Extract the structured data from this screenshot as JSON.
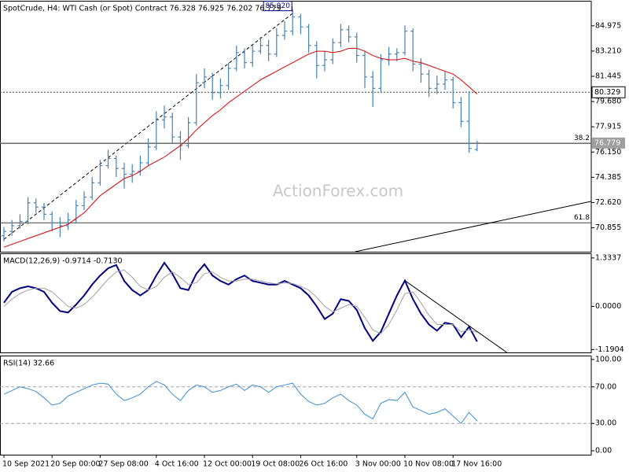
{
  "chart_data": [
    {
      "type": "ohlc",
      "title": "SpotCrude, H4:  WTI Cash (or Spot) Contract  76.328 76.925 76.202 76.779",
      "watermark": "ActionForex.com",
      "color": "#4682b4",
      "categories": [
        "10 Sep 2021",
        null,
        null,
        null,
        null,
        null,
        "20 Sep 00:00",
        null,
        null,
        null,
        null,
        null,
        "27 Sep 08:00",
        null,
        null,
        null,
        null,
        null,
        null,
        "4 Oct 16:00",
        null,
        null,
        null,
        null,
        null,
        "12 Oct 00:00",
        null,
        null,
        null,
        null,
        null,
        "19 Oct 08:00",
        null,
        null,
        null,
        null,
        null,
        "26 Oct 16:00",
        null,
        null,
        null,
        null,
        null,
        null,
        "3 Nov 00:00",
        null,
        null,
        null,
        null,
        null,
        "10 Nov 08:00",
        null,
        null,
        null,
        null,
        null,
        "17 Nov 16:00",
        null,
        null,
        null
      ],
      "open": [
        70.3,
        70.6,
        71.0,
        71.3,
        72.6,
        72.3,
        71.8,
        71.2,
        71.0,
        71.4,
        72.4,
        73.0,
        74.0,
        75.2,
        75.7,
        75.0,
        74.6,
        74.8,
        75.4,
        76.5,
        78.4,
        78.6,
        77.2,
        76.6,
        78.2,
        81.0,
        81.4,
        80.3,
        80.8,
        82.0,
        83.1,
        82.4,
        83.2,
        83.6,
        83.0,
        84.3,
        84.6,
        85.6,
        84.9,
        83.6,
        82.2,
        82.6,
        83.8,
        84.7,
        84.2,
        82.9,
        81.4,
        80.6,
        82.6,
        83.0,
        83.1,
        84.6,
        82.3,
        81.6,
        80.6,
        80.9,
        81.2,
        79.6,
        78.3,
        76.328
      ],
      "high": [
        70.9,
        71.4,
        71.8,
        73.0,
        72.9,
        72.6,
        72.0,
        71.6,
        71.9,
        72.8,
        73.4,
        74.4,
        75.6,
        76.3,
        75.9,
        75.4,
        75.3,
        75.9,
        77.1,
        79.0,
        79.4,
        78.9,
        77.6,
        78.6,
        81.6,
        82.0,
        81.7,
        81.3,
        82.4,
        83.6,
        83.4,
        83.6,
        84.2,
        84.0,
        84.8,
        85.3,
        85.92,
        85.8,
        85.1,
        83.9,
        83.2,
        84.1,
        85.1,
        85.0,
        84.5,
        83.2,
        81.8,
        83.0,
        83.5,
        83.4,
        85.0,
        84.8,
        82.7,
        81.9,
        81.5,
        81.8,
        81.4,
        80.0,
        80.4,
        76.925
      ],
      "low": [
        69.9,
        70.3,
        70.8,
        71.1,
        71.9,
        71.4,
        70.6,
        70.2,
        70.7,
        71.2,
        72.1,
        72.8,
        73.8,
        75.0,
        74.4,
        73.6,
        74.0,
        74.5,
        75.2,
        76.3,
        77.8,
        76.8,
        75.6,
        76.4,
        78.0,
        80.6,
        79.8,
        79.9,
        80.5,
        81.8,
        82.0,
        82.1,
        83.0,
        82.5,
        82.8,
        84.0,
        84.3,
        84.4,
        83.1,
        81.3,
        81.8,
        82.3,
        83.5,
        83.8,
        82.4,
        80.6,
        79.3,
        80.3,
        82.2,
        82.5,
        82.9,
        81.8,
        81.0,
        80.0,
        80.2,
        80.5,
        79.2,
        77.9,
        76.1,
        76.202
      ],
      "close": [
        70.6,
        71.0,
        71.3,
        72.6,
        72.3,
        71.8,
        71.2,
        71.0,
        71.4,
        72.4,
        73.0,
        74.0,
        75.2,
        75.7,
        75.0,
        74.6,
        74.8,
        75.4,
        76.5,
        78.4,
        78.6,
        77.2,
        76.6,
        78.2,
        81.0,
        81.4,
        80.3,
        80.8,
        82.0,
        83.1,
        82.4,
        83.2,
        83.6,
        83.0,
        84.3,
        84.6,
        85.6,
        84.9,
        83.6,
        82.2,
        82.6,
        83.8,
        84.7,
        84.2,
        82.9,
        81.4,
        80.6,
        82.6,
        83.0,
        83.1,
        84.6,
        82.3,
        81.6,
        80.6,
        80.9,
        81.2,
        79.6,
        78.3,
        76.4,
        76.779
      ],
      "ma": {
        "color": "#e00000",
        "values": [
          69.5,
          69.7,
          69.9,
          70.1,
          70.3,
          70.5,
          70.7,
          70.9,
          71.1,
          71.5,
          71.9,
          72.5,
          73.1,
          73.5,
          73.9,
          74.3,
          74.5,
          74.8,
          75.2,
          75.5,
          75.8,
          76.2,
          76.6,
          77.1,
          77.7,
          78.2,
          78.7,
          79.1,
          79.6,
          80.0,
          80.4,
          80.8,
          81.2,
          81.5,
          81.8,
          82.1,
          82.4,
          82.7,
          83.0,
          83.2,
          83.2,
          83.1,
          83.2,
          83.4,
          83.4,
          83.2,
          82.9,
          82.7,
          82.6,
          82.6,
          82.7,
          82.5,
          82.4,
          82.2,
          82.0,
          81.8,
          81.6,
          81.2,
          80.7,
          80.2
        ]
      },
      "ylim": [
        69.18,
        86.67
      ],
      "yticks": [
        84.975,
        {
          "value": 83.21,
          "label": "83.210"
        },
        81.445,
        {
          "value": 79.68,
          "label": "79.680"
        },
        77.915,
        {
          "value": 76.15,
          "label": "76.150"
        },
        74.385,
        {
          "value": 72.62,
          "label": "72.620"
        },
        70.855
      ],
      "levels": [
        {
          "value": 80.329,
          "style": "dotted"
        },
        {
          "value": 76.75,
          "label": "38.2"
        },
        {
          "value": 71.2,
          "label": "61.8"
        }
      ],
      "trendlines": [
        {
          "points": [
            [
              0,
              70.05
            ],
            [
              36,
              85.85
            ]
          ],
          "style": "dashed"
        },
        {
          "points": [
            [
              43.8,
              69.18
            ],
            [
              73.2,
              72.7
            ]
          ],
          "style": "solid"
        }
      ],
      "annotations": [
        {
          "index": 36,
          "value": 85.92,
          "label": "85.920"
        }
      ]
    },
    {
      "type": "macd",
      "title": "MACD(12,26,9) -0.9714 -0.7130",
      "series": [
        {
          "color": "#000080",
          "values": [
            0.1,
            0.4,
            0.5,
            0.55,
            0.5,
            0.4,
            0.1,
            -0.13,
            -0.17,
            0.05,
            0.3,
            0.6,
            0.85,
            1.05,
            1.14,
            0.7,
            0.45,
            0.3,
            0.45,
            0.85,
            1.2,
            0.9,
            0.5,
            0.45,
            0.9,
            1.16,
            0.85,
            0.7,
            0.6,
            0.75,
            0.85,
            0.7,
            0.65,
            0.6,
            0.6,
            0.7,
            0.6,
            0.5,
            0.3,
            0.0,
            -0.35,
            -0.2,
            0.2,
            0.15,
            -0.1,
            -0.6,
            -0.95,
            -0.7,
            -0.2,
            0.3,
            0.71,
            0.2,
            -0.2,
            -0.5,
            -0.67,
            -0.45,
            -0.5,
            -0.85,
            -0.56,
            -0.9714
          ]
        },
        {
          "color": "#a0a0a0",
          "values": [
            0.0,
            0.2,
            0.35,
            0.45,
            0.5,
            0.5,
            0.4,
            0.2,
            0.0,
            -0.05,
            0.05,
            0.25,
            0.5,
            0.75,
            0.95,
            1.0,
            0.8,
            0.55,
            0.45,
            0.55,
            0.8,
            0.95,
            0.8,
            0.6,
            0.65,
            0.9,
            0.95,
            0.8,
            0.7,
            0.7,
            0.75,
            0.75,
            0.7,
            0.65,
            0.62,
            0.65,
            0.63,
            0.55,
            0.45,
            0.25,
            0.0,
            -0.15,
            -0.05,
            0.05,
            0.0,
            -0.3,
            -0.65,
            -0.75,
            -0.5,
            -0.1,
            0.35,
            0.4,
            0.1,
            -0.25,
            -0.5,
            -0.5,
            -0.5,
            -0.7,
            -0.65,
            -0.713
          ]
        }
      ],
      "ylim": [
        -1.269,
        1.44
      ],
      "yticks": [
        1.3337,
        {
          "value": 0,
          "label": "0.0000"
        },
        -1.1904
      ],
      "trendlines": [
        {
          "points": [
            [
              50,
              0.71
            ],
            [
              62.7,
              -1.269
            ]
          ],
          "style": "solid"
        }
      ]
    },
    {
      "type": "rsi",
      "title": "RSI(14) 32.66",
      "color": "#3a8fd0",
      "values": [
        62,
        66,
        70,
        68,
        65,
        58,
        50,
        52,
        60,
        64,
        68,
        72,
        74,
        73,
        62,
        55,
        58,
        62,
        70,
        76,
        72,
        62,
        55,
        66,
        72,
        70,
        64,
        66,
        70,
        73,
        66,
        72,
        70,
        64,
        70,
        72,
        74,
        62,
        54,
        50,
        52,
        58,
        62,
        55,
        50,
        40,
        35,
        52,
        56,
        55,
        64,
        48,
        44,
        40,
        42,
        46,
        38,
        30,
        42,
        32.66
      ],
      "ylim": [
        -4.3,
        103.4
      ],
      "yticks": [
        {
          "value": 100,
          "label": "100.00"
        },
        {
          "value": 70,
          "label": "70.00"
        },
        {
          "value": 30,
          "label": "30.00"
        },
        {
          "value": 0,
          "label": "0.00"
        }
      ],
      "levels": [
        70,
        30
      ]
    }
  ]
}
